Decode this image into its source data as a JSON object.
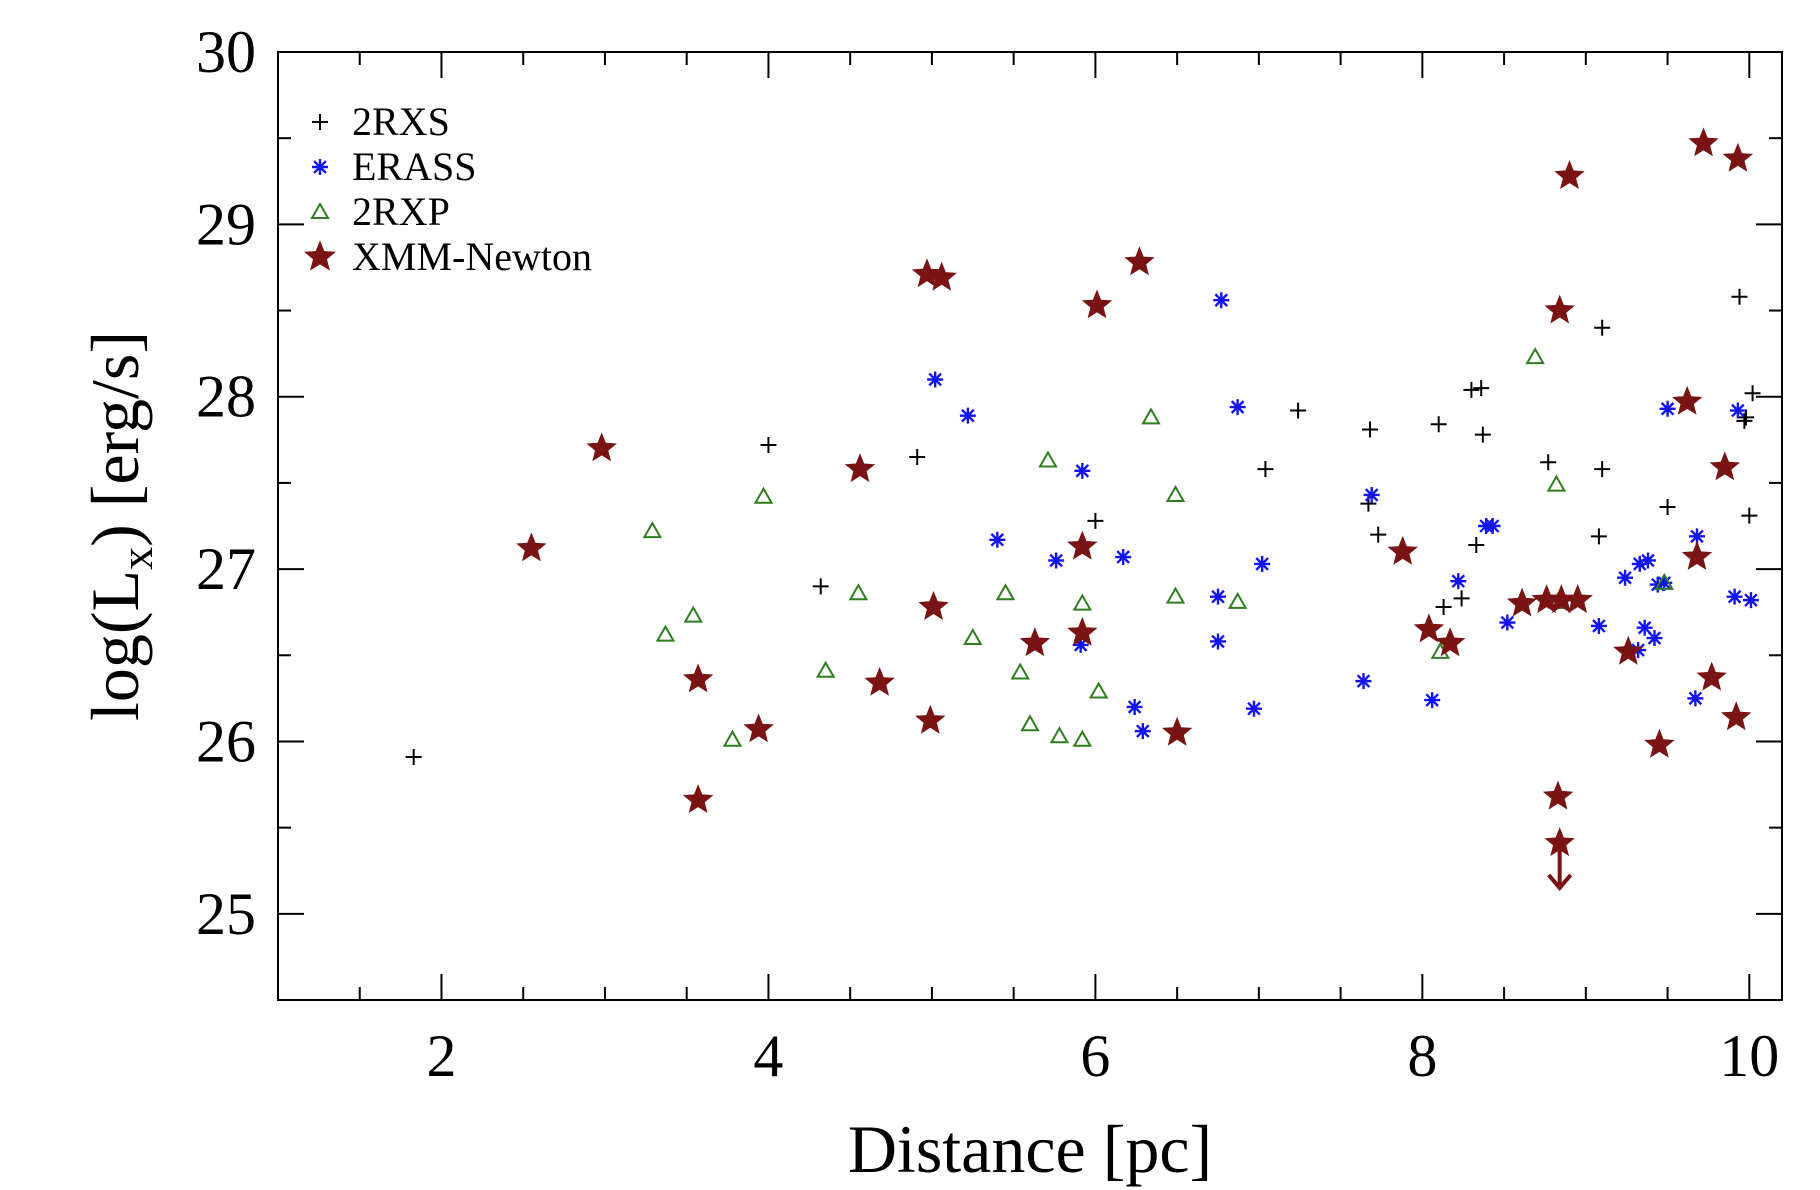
{
  "chart_data": {
    "type": "scatter",
    "title": "",
    "xlabel": "Distance [pc]",
    "ylabel": "log(L",
    "ylabel_subscript": "x",
    "ylabel_suffix": ") [erg/s]",
    "xlim": [
      1,
      10.2
    ],
    "ylim": [
      24.5,
      30.0
    ],
    "xticks": [
      2,
      4,
      6,
      8,
      10
    ],
    "yticks": [
      25,
      26,
      27,
      28,
      29,
      30
    ],
    "xticks_minor": [
      1.5,
      2.5,
      3,
      3.5,
      4.5,
      5,
      5.5,
      6.5,
      7,
      7.5,
      8.5,
      9,
      9.5
    ],
    "yticks_minor": [
      25.5,
      26.5,
      27.5,
      28.5,
      29.5
    ],
    "legend_position": "top-left",
    "series": [
      {
        "name": "2RXS",
        "marker": "plus",
        "color": "#000000",
        "x": [
          1.83,
          4.0,
          4.32,
          4.91,
          6.0,
          7.04,
          7.24,
          7.68,
          7.67,
          7.73,
          8.1,
          8.13,
          8.24,
          8.3,
          8.33,
          8.36,
          8.37,
          8.77,
          9.08,
          9.1,
          9.1,
          9.5,
          9.94,
          9.97,
          9.98,
          10.0,
          10.02
        ],
        "y": [
          25.91,
          27.72,
          26.9,
          27.65,
          27.28,
          27.58,
          27.92,
          27.81,
          27.38,
          27.2,
          27.84,
          26.78,
          26.83,
          28.04,
          27.14,
          28.05,
          27.78,
          27.62,
          27.19,
          28.4,
          27.58,
          27.36,
          28.58,
          27.86,
          27.88,
          27.31,
          28.02
        ]
      },
      {
        "name": "ERASS",
        "marker": "asterisk",
        "color": "#1414f0",
        "x": [
          5.02,
          5.22,
          5.4,
          5.76,
          5.91,
          5.92,
          6.17,
          6.24,
          6.29,
          6.75,
          6.75,
          6.77,
          6.87,
          6.97,
          7.02,
          7.64,
          7.69,
          8.06,
          8.22,
          8.39,
          8.43,
          8.52,
          9.08,
          9.24,
          9.32,
          9.33,
          9.36,
          9.38,
          9.42,
          9.44,
          9.48,
          9.5,
          9.67,
          9.68,
          9.91,
          9.93,
          10.01
        ],
        "y": [
          28.1,
          27.89,
          27.17,
          27.05,
          26.56,
          27.57,
          27.07,
          26.2,
          26.06,
          26.84,
          26.58,
          28.56,
          27.94,
          26.19,
          27.03,
          26.35,
          27.43,
          26.24,
          26.93,
          27.25,
          27.25,
          26.69,
          26.67,
          26.95,
          26.53,
          27.03,
          26.66,
          27.05,
          26.6,
          26.91,
          26.92,
          27.93,
          26.25,
          27.19,
          26.84,
          27.92,
          26.82
        ]
      },
      {
        "name": "2RXP",
        "marker": "triangle",
        "color": "#2e7d1e",
        "x": [
          3.29,
          3.37,
          3.54,
          3.78,
          3.97,
          4.35,
          4.55,
          5.25,
          5.45,
          5.54,
          5.6,
          5.71,
          5.78,
          5.92,
          5.92,
          6.02,
          6.34,
          6.49,
          6.49,
          6.87,
          8.11,
          8.69,
          8.82,
          8.83,
          9.48
        ],
        "y": [
          27.22,
          26.62,
          26.73,
          26.01,
          27.42,
          26.41,
          26.86,
          26.6,
          26.86,
          26.4,
          26.1,
          27.63,
          26.03,
          26.8,
          26.01,
          26.29,
          27.88,
          27.43,
          26.84,
          26.81,
          26.52,
          28.23,
          27.49,
          26.81,
          26.92
        ]
      },
      {
        "name": "XMM-Newton",
        "marker": "star",
        "color": "#7a1414",
        "x": [
          2.55,
          2.98,
          3.57,
          3.57,
          3.94,
          4.56,
          4.68,
          4.97,
          4.99,
          5.01,
          5.06,
          5.63,
          5.92,
          5.92,
          6.01,
          6.27,
          6.5,
          7.88,
          8.04,
          8.17,
          8.61,
          8.76,
          8.83,
          8.84,
          8.85,
          8.9,
          8.95,
          9.26,
          9.45,
          9.62,
          9.68,
          9.72,
          9.77,
          9.85,
          9.92,
          9.93
        ],
        "y": [
          27.12,
          27.7,
          26.36,
          25.66,
          26.07,
          27.58,
          26.34,
          28.71,
          26.12,
          26.78,
          28.69,
          26.57,
          27.13,
          26.63,
          28.53,
          28.78,
          26.05,
          27.1,
          26.65,
          26.57,
          26.8,
          26.82,
          25.68,
          28.5,
          26.82,
          29.28,
          26.82,
          26.52,
          25.98,
          27.97,
          27.07,
          29.47,
          26.37,
          27.59,
          26.14,
          29.38
        ]
      }
    ],
    "upper_limit": {
      "x": 8.84,
      "y": 25.41,
      "y_arrow_end": 25.15,
      "color": "#7a1414"
    }
  }
}
